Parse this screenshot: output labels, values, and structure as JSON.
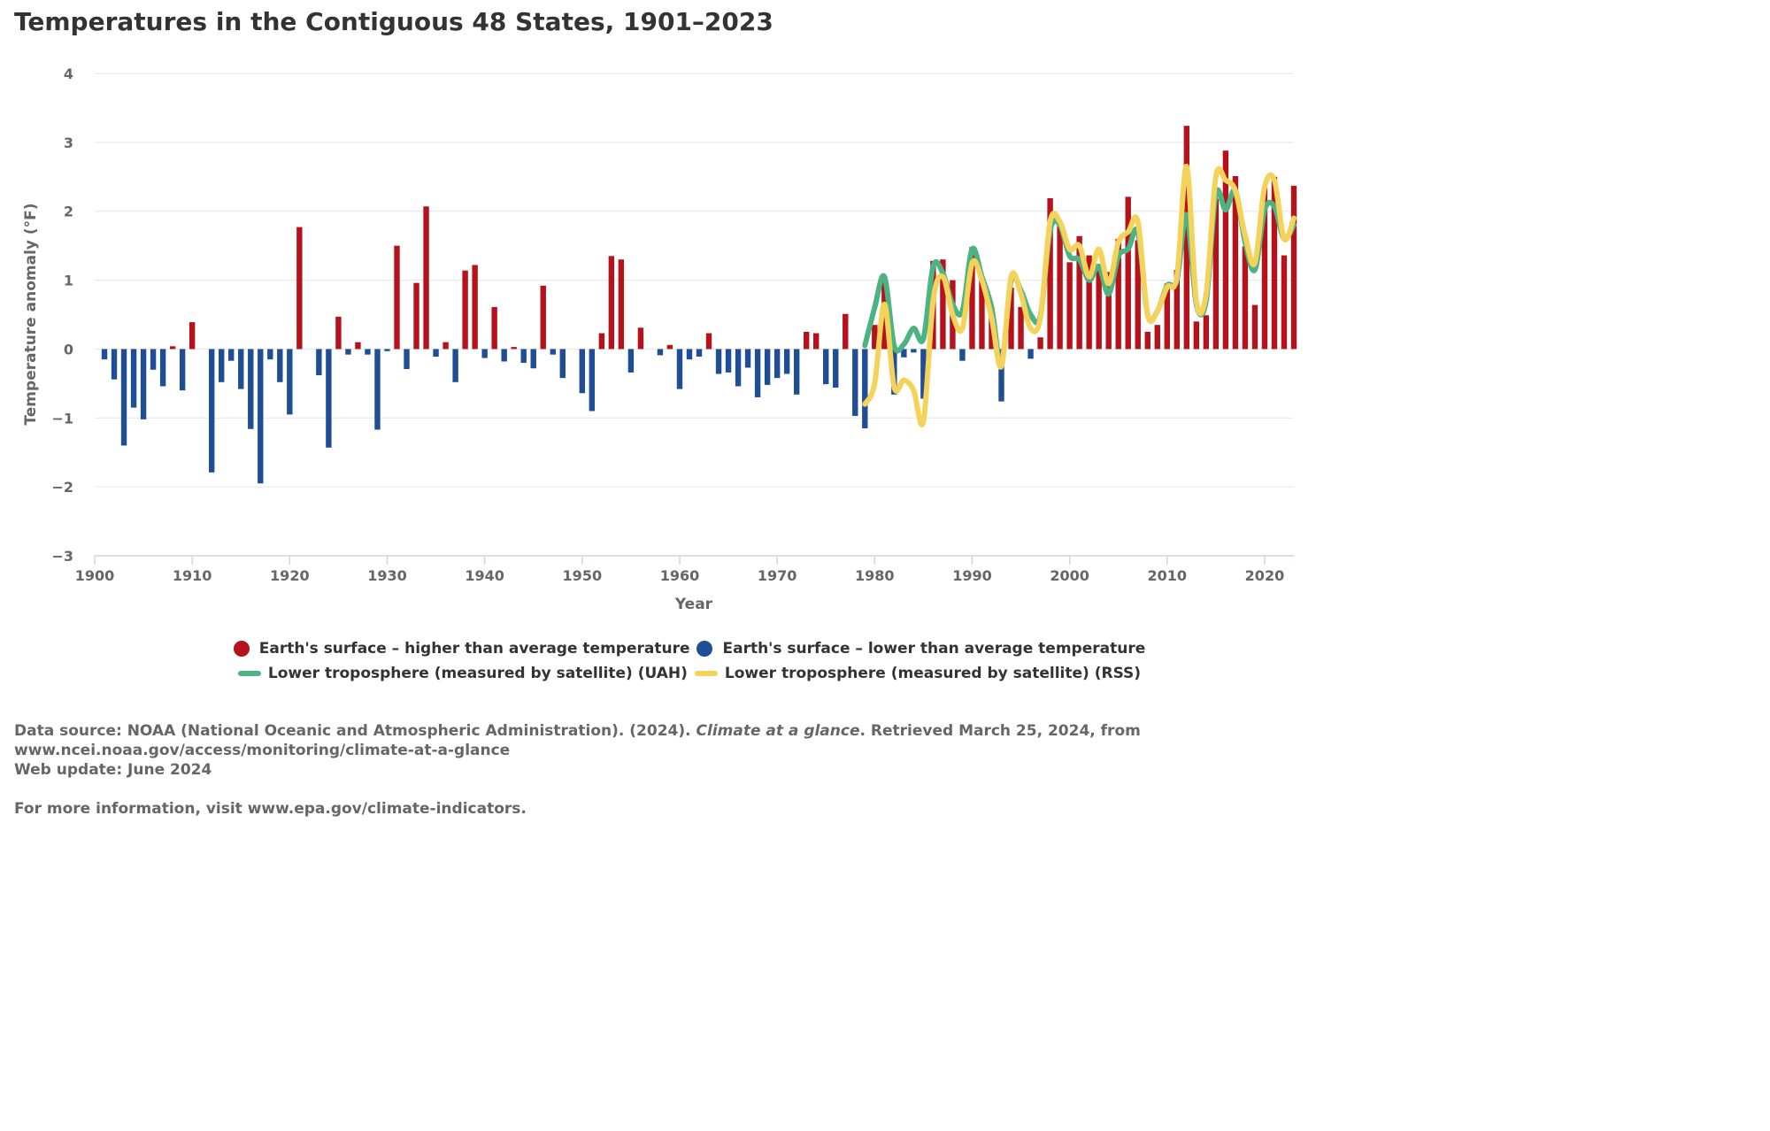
{
  "title": "Temperatures in the Contiguous 48 States, 1901–2023",
  "colors": {
    "above": "#b5121b",
    "below": "#1f4e96",
    "uah": "#4db383",
    "rss": "#f5d35a",
    "grid": "#e6e6e6",
    "axis": "#ccd6eb"
  },
  "legend": {
    "items": [
      {
        "label": "Earth's surface – higher than average temperature",
        "shape": "dot",
        "color": "#b5121b"
      },
      {
        "label": "Earth's surface – lower than average temperature",
        "shape": "dot",
        "color": "#1f4e96"
      },
      {
        "label": "Lower troposphere (measured by satellite) (UAH)",
        "shape": "line",
        "color": "#4db383"
      },
      {
        "label": "Lower troposphere (measured by satellite) (RSS)",
        "shape": "line",
        "color": "#f5d35a"
      }
    ]
  },
  "footer": {
    "source_prefix": "Data source: NOAA (National Oceanic and Atmospheric Administration). (2024). ",
    "source_italic": "Climate at a glance",
    "source_suffix": ". Retrieved March 25, 2024, from",
    "source_url": "www.ncei.noaa.gov/access/monitoring/climate-at-a-glance",
    "web_update": "Web update: June 2024",
    "more_info": "For more information, visit www.epa.gov/climate-indicators."
  },
  "chart_data": {
    "type": "bar",
    "title": "Temperatures in the Contiguous 48 States, 1901–2023",
    "xlabel": "Year",
    "ylabel": "Temperature anomaly (°F)",
    "xlim": [
      1900,
      2023
    ],
    "ylim": [
      -3,
      4
    ],
    "x_ticks": [
      1900,
      1910,
      1920,
      1930,
      1940,
      1950,
      1960,
      1970,
      1980,
      1990,
      2000,
      2010,
      2020
    ],
    "y_ticks": [
      4,
      3,
      2,
      1,
      0,
      -1,
      -2,
      -3
    ],
    "y_tick_labels": [
      "4",
      "3",
      "2",
      "1",
      "0",
      "−1",
      "−2",
      "−3"
    ],
    "grid": true,
    "legend_position": "bottom-center",
    "series": [
      {
        "name": "Earth's surface",
        "type": "bar",
        "start_year": 1901,
        "values": [
          -0.15,
          -0.44,
          -1.4,
          -0.85,
          -1.02,
          -0.3,
          -0.54,
          0.04,
          -0.6,
          0.39,
          0.0,
          -1.79,
          -0.48,
          -0.17,
          -0.58,
          -1.16,
          -1.95,
          -0.15,
          -0.48,
          -0.95,
          1.77,
          0.0,
          -0.38,
          -1.43,
          0.47,
          -0.08,
          0.1,
          -0.08,
          -1.17,
          -0.03,
          1.5,
          -0.29,
          0.96,
          2.07,
          -0.11,
          0.1,
          -0.48,
          1.14,
          1.22,
          -0.13,
          0.61,
          -0.18,
          0.03,
          -0.2,
          -0.28,
          0.92,
          -0.08,
          -0.42,
          0.0,
          -0.64,
          -0.9,
          0.23,
          1.35,
          1.3,
          -0.34,
          0.31,
          0.0,
          -0.09,
          0.06,
          -0.58,
          -0.15,
          -0.11,
          0.23,
          -0.36,
          -0.34,
          -0.54,
          -0.27,
          -0.7,
          -0.52,
          -0.42,
          -0.36,
          -0.66,
          0.25,
          0.23,
          -0.51,
          -0.56,
          0.51,
          -0.97,
          -1.15,
          0.35,
          1.05,
          -0.66,
          -0.12,
          -0.05,
          -0.72,
          1.28,
          1.3,
          1.0,
          -0.17,
          1.48,
          1.0,
          0.55,
          -0.76,
          0.89,
          0.61,
          -0.14,
          0.17,
          2.19,
          1.85,
          1.26,
          1.64,
          1.36,
          1.2,
          1.12,
          1.6,
          2.21,
          1.58,
          0.25,
          0.35,
          0.95,
          1.15,
          3.24,
          0.4,
          0.49,
          2.18,
          2.88,
          2.51,
          1.49,
          0.64,
          2.34,
          2.5,
          1.36,
          2.37
        ]
      },
      {
        "name": "Lower troposphere (measured by satellite) (UAH)",
        "type": "line",
        "x": [
          1979,
          1980,
          1981,
          1982,
          1983,
          1984,
          1985,
          1986,
          1987,
          1988,
          1989,
          1990,
          1991,
          1992,
          1993,
          1994,
          1995,
          1996,
          1997,
          1998,
          1999,
          2000,
          2001,
          2002,
          2003,
          2004,
          2005,
          2006,
          2007,
          2008,
          2009,
          2010,
          2011,
          2012,
          2013,
          2014,
          2015,
          2016,
          2017,
          2018,
          2019,
          2020,
          2021,
          2022,
          2023
        ],
        "values": [
          0.05,
          0.6,
          1.05,
          0.05,
          0.07,
          0.3,
          0.15,
          1.2,
          1.1,
          0.65,
          0.55,
          1.45,
          1.05,
          0.6,
          -0.22,
          1.0,
          0.85,
          0.5,
          0.48,
          1.72,
          1.8,
          1.35,
          1.3,
          1.0,
          1.2,
          0.8,
          1.35,
          1.45,
          1.7,
          0.5,
          0.55,
          0.92,
          1.0,
          1.95,
          0.65,
          0.7,
          2.25,
          2.02,
          2.3,
          1.55,
          1.15,
          2.02,
          2.07,
          1.6,
          1.8
        ]
      },
      {
        "name": "Lower troposphere (measured by satellite) (RSS)",
        "type": "line",
        "x": [
          1979,
          1980,
          1981,
          1982,
          1983,
          1984,
          1985,
          1986,
          1987,
          1988,
          1989,
          1990,
          1991,
          1992,
          1993,
          1994,
          1995,
          1996,
          1997,
          1998,
          1999,
          2000,
          2001,
          2002,
          2003,
          2004,
          2005,
          2006,
          2007,
          2008,
          2009,
          2010,
          2011,
          2012,
          2013,
          2014,
          2015,
          2016,
          2017,
          2018,
          2019,
          2020,
          2021,
          2022,
          2023
        ],
        "values": [
          -0.8,
          -0.5,
          0.65,
          -0.55,
          -0.45,
          -0.6,
          -1.05,
          0.7,
          1.05,
          0.5,
          0.3,
          1.25,
          1.0,
          0.45,
          -0.25,
          1.05,
          0.8,
          0.3,
          0.45,
          1.85,
          1.85,
          1.45,
          1.5,
          1.05,
          1.45,
          0.95,
          1.55,
          1.7,
          1.85,
          0.5,
          0.55,
          0.9,
          1.05,
          2.65,
          0.7,
          0.8,
          2.5,
          2.45,
          2.3,
          1.65,
          1.25,
          2.35,
          2.45,
          1.6,
          1.9
        ]
      }
    ]
  }
}
